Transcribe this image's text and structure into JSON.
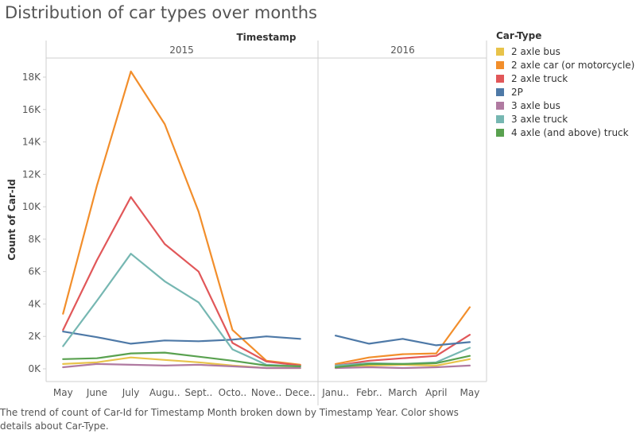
{
  "title": "Distribution of car types over months",
  "caption": "The trend of count of Car-Id for Timestamp Month broken down by Timestamp Year.  Color shows details about Car-Type.",
  "chart_data": {
    "type": "line",
    "column_header_title": "Timestamp",
    "ylabel": "Count of Car-Id",
    "ylim": [
      0,
      19000
    ],
    "yticks": [
      0,
      2000,
      4000,
      6000,
      8000,
      10000,
      12000,
      14000,
      16000,
      18000
    ],
    "ytick_labels": [
      "0K",
      "2K",
      "4K",
      "6K",
      "8K",
      "10K",
      "12K",
      "14K",
      "16K",
      "18K"
    ],
    "grid": false,
    "legend_position": "right",
    "panels": [
      {
        "label": "2015",
        "categories": [
          "May",
          "June",
          "July",
          "Augu..",
          "Sept..",
          "Octo..",
          "Nove..",
          "Dece.."
        ]
      },
      {
        "label": "2016",
        "categories": [
          "Janu..",
          "Febr..",
          "March",
          "April",
          "May"
        ]
      }
    ],
    "legend_title": "Car-Type",
    "series": [
      {
        "name": "2 axle bus",
        "color": "#e8c34a",
        "values": [
          [
            300,
            400,
            700,
            550,
            400,
            200,
            50,
            50
          ],
          [
            50,
            200,
            250,
            200,
            600
          ]
        ]
      },
      {
        "name": "2 axle car (or motorcycle)",
        "color": "#f28e2b",
        "values": [
          [
            3400,
            11300,
            18350,
            15100,
            9700,
            2400,
            500,
            250
          ],
          [
            300,
            700,
            900,
            950,
            3800
          ]
        ]
      },
      {
        "name": "2 axle truck",
        "color": "#e15759",
        "values": [
          [
            2400,
            6700,
            10600,
            7700,
            6000,
            1600,
            450,
            200
          ],
          [
            200,
            500,
            650,
            800,
            2100
          ]
        ]
      },
      {
        "name": "2P",
        "color": "#4e79a7",
        "values": [
          [
            2300,
            1950,
            1550,
            1750,
            1700,
            1800,
            2000,
            1850
          ],
          [
            2050,
            1550,
            1850,
            1450,
            1650
          ]
        ]
      },
      {
        "name": "3 axle bus",
        "color": "#b07aa1",
        "values": [
          [
            100,
            300,
            250,
            200,
            250,
            150,
            50,
            50
          ],
          [
            50,
            100,
            50,
            100,
            200
          ]
        ]
      },
      {
        "name": "3 axle truck",
        "color": "#76b7b2",
        "values": [
          [
            1400,
            4200,
            7100,
            5400,
            4100,
            1200,
            250,
            150
          ],
          [
            200,
            350,
            300,
            400,
            1300
          ]
        ]
      },
      {
        "name": "4 axle (and above) truck",
        "color": "#59a14f",
        "values": [
          [
            600,
            650,
            950,
            1000,
            750,
            500,
            200,
            150
          ],
          [
            100,
            300,
            300,
            350,
            800
          ]
        ]
      }
    ]
  }
}
